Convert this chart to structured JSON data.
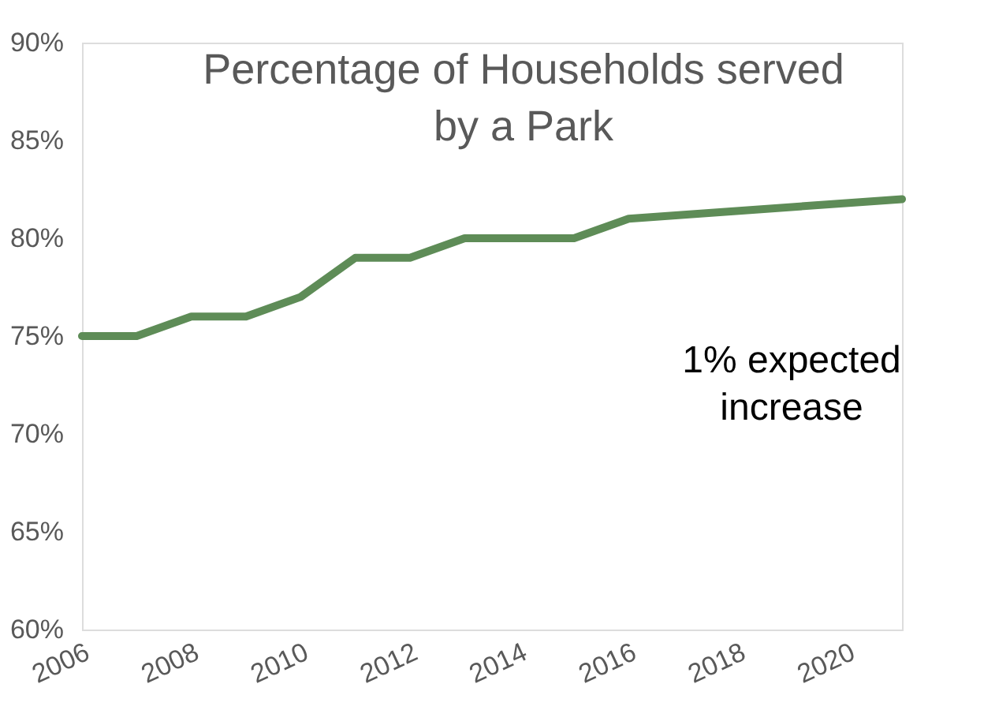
{
  "chart_data": {
    "type": "line",
    "title": "Percentage of Households served by a Park",
    "x": [
      2006,
      2007,
      2008,
      2009,
      2010,
      2011,
      2012,
      2013,
      2014,
      2015,
      2016,
      2021
    ],
    "series": [
      {
        "color": "#5e8c57",
        "values": [
          75,
          75,
          76,
          76,
          77,
          79,
          79,
          80,
          80,
          80,
          81,
          82
        ]
      }
    ],
    "xlim": [
      2006,
      2021
    ],
    "xticks": [
      2006,
      2008,
      2010,
      2012,
      2014,
      2016,
      2018,
      2020
    ],
    "ylim": [
      60,
      90
    ],
    "yticks": [
      {
        "value": 60,
        "label": "60%"
      },
      {
        "value": 65,
        "label": "65%"
      },
      {
        "value": 70,
        "label": "70%"
      },
      {
        "value": 75,
        "label": "75%"
      },
      {
        "value": 80,
        "label": "80%"
      },
      {
        "value": 85,
        "label": "85%"
      },
      {
        "value": 90,
        "label": "90%"
      }
    ],
    "annotations": [
      "1% expected increase"
    ],
    "grid": false,
    "marker": "none",
    "line_style": "solid"
  }
}
